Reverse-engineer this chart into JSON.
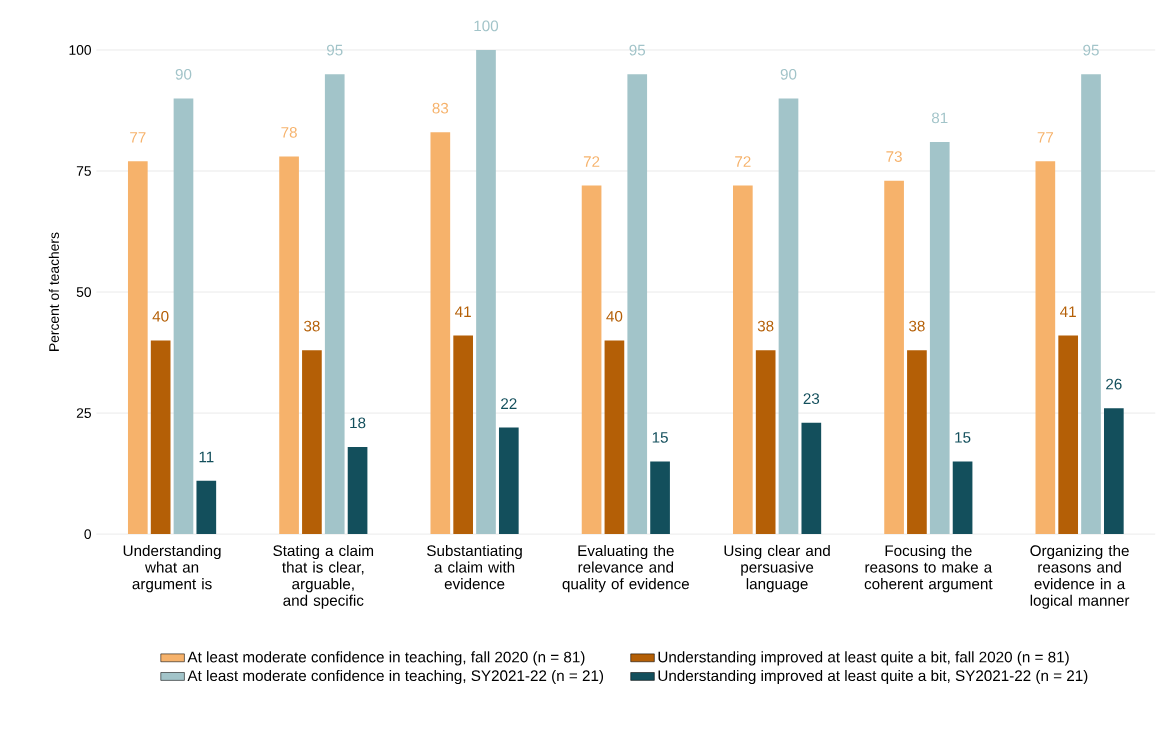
{
  "chart_data": {
    "type": "bar",
    "ylabel": "Percent of teachers",
    "categories": [
      "Understanding what an argument is",
      "Stating a claim that is clear, arguable, and specific",
      "Substantiating a claim with evidence",
      "Evaluating the relevance and quality of evidence",
      "Using clear and persuasive language",
      "Focusing the reasons to make a coherent argument",
      "Organizing the reasons and evidence in a logical manner"
    ],
    "series": [
      {
        "name": "At least moderate confidence in teaching, fall 2020 (n = 81)",
        "color": "#f6b26b",
        "values": [
          77,
          78,
          83,
          72,
          72,
          73,
          77
        ]
      },
      {
        "name": "Understanding improved at least quite a bit, fall 2020 (n = 81)",
        "color": "#b45f06",
        "values": [
          40,
          38,
          41,
          40,
          38,
          38,
          41
        ]
      },
      {
        "name": "At least moderate confidence in teaching, SY2021-22 (n = 21)",
        "color": "#a2c4c9",
        "values": [
          90,
          95,
          100,
          95,
          90,
          81,
          95
        ]
      },
      {
        "name": "Understanding improved at least quite a bit, SY2021-22 (n = 21)",
        "color": "#134f5c",
        "values": [
          11,
          18,
          22,
          15,
          23,
          15,
          26
        ]
      }
    ],
    "ylim": [
      0,
      100
    ],
    "yticks": [
      0,
      25,
      50,
      75,
      100
    ],
    "grid": "y",
    "legend": "bottom",
    "data_labels": true
  }
}
